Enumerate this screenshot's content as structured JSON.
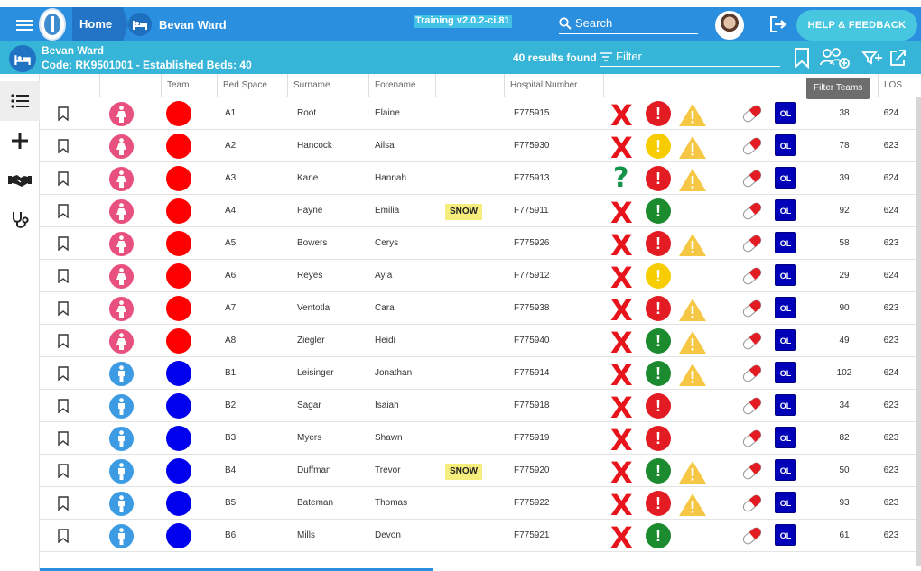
{
  "topbar": {
    "home_label": "Home",
    "ward_crumb": "Bevan Ward",
    "version": "Training v2.0.2-ci.81",
    "search_placeholder": "Search",
    "help_label": "HELP & FEEDBACK"
  },
  "ward": {
    "name": "Bevan Ward",
    "code_line": "Code: RK9501001 - Established Beds: 40",
    "results": "40 results found",
    "filter_placeholder": "Filter"
  },
  "tooltip": "Filter Teams",
  "headers": [
    "Team",
    "Bed Space",
    "Surname",
    "Forename",
    "Hospital Number",
    "LOS"
  ],
  "colors": {
    "female": "#e8507f",
    "male": "#3d9be3",
    "team_red": "#ff0000",
    "team_blue": "#0000ee"
  },
  "rows": [
    {
      "gender": "female",
      "team": "red",
      "bed": "A1",
      "surname": "Root",
      "forename": "Elaine",
      "snow": "",
      "hosp": "F775915",
      "mark": "X",
      "alert": "red",
      "warn": true,
      "n1": "38",
      "n2": "624"
    },
    {
      "gender": "female",
      "team": "red",
      "bed": "A2",
      "surname": "Hancock",
      "forename": "Ailsa",
      "snow": "",
      "hosp": "F775930",
      "mark": "X",
      "alert": "yellow",
      "warn": true,
      "n1": "78",
      "n2": "623"
    },
    {
      "gender": "female",
      "team": "red",
      "bed": "A3",
      "surname": "Kane",
      "forename": "Hannah",
      "snow": "",
      "hosp": "F775913",
      "mark": "?",
      "alert": "red",
      "warn": true,
      "n1": "39",
      "n2": "624"
    },
    {
      "gender": "female",
      "team": "red",
      "bed": "A4",
      "surname": "Payne",
      "forename": "Emilia",
      "snow": "SNOW",
      "hosp": "F775911",
      "mark": "X",
      "alert": "green",
      "warn": false,
      "n1": "92",
      "n2": "624"
    },
    {
      "gender": "female",
      "team": "red",
      "bed": "A5",
      "surname": "Bowers",
      "forename": "Cerys",
      "snow": "",
      "hosp": "F775926",
      "mark": "X",
      "alert": "red",
      "warn": true,
      "n1": "58",
      "n2": "623"
    },
    {
      "gender": "female",
      "team": "red",
      "bed": "A6",
      "surname": "Reyes",
      "forename": "Ayla",
      "snow": "",
      "hosp": "F775912",
      "mark": "X",
      "alert": "yellow",
      "warn": false,
      "n1": "29",
      "n2": "624"
    },
    {
      "gender": "female",
      "team": "red",
      "bed": "A7",
      "surname": "Ventotla",
      "forename": "Cara",
      "snow": "",
      "hosp": "F775938",
      "mark": "X",
      "alert": "red",
      "warn": true,
      "n1": "90",
      "n2": "623"
    },
    {
      "gender": "female",
      "team": "red",
      "bed": "A8",
      "surname": "Ziegler",
      "forename": "Heidi",
      "snow": "",
      "hosp": "F775940",
      "mark": "X",
      "alert": "green",
      "warn": true,
      "n1": "49",
      "n2": "623"
    },
    {
      "gender": "male",
      "team": "blue",
      "bed": "B1",
      "surname": "Leisinger",
      "forename": "Jonathan",
      "snow": "",
      "hosp": "F775914",
      "mark": "X",
      "alert": "green",
      "warn": true,
      "n1": "102",
      "n2": "624"
    },
    {
      "gender": "male",
      "team": "blue",
      "bed": "B2",
      "surname": "Sagar",
      "forename": "Isaiah",
      "snow": "",
      "hosp": "F775918",
      "mark": "X",
      "alert": "red",
      "warn": false,
      "n1": "34",
      "n2": "623"
    },
    {
      "gender": "male",
      "team": "blue",
      "bed": "B3",
      "surname": "Myers",
      "forename": "Shawn",
      "snow": "",
      "hosp": "F775919",
      "mark": "X",
      "alert": "red",
      "warn": false,
      "n1": "82",
      "n2": "623"
    },
    {
      "gender": "male",
      "team": "blue",
      "bed": "B4",
      "surname": "Duffman",
      "forename": "Trevor",
      "snow": "SNOW",
      "hosp": "F775920",
      "mark": "X",
      "alert": "green",
      "warn": true,
      "n1": "50",
      "n2": "623"
    },
    {
      "gender": "male",
      "team": "blue",
      "bed": "B5",
      "surname": "Bateman",
      "forename": "Thomas",
      "snow": "",
      "hosp": "F775922",
      "mark": "X",
      "alert": "red",
      "warn": true,
      "n1": "93",
      "n2": "623"
    },
    {
      "gender": "male",
      "team": "blue",
      "bed": "B6",
      "surname": "Mills",
      "forename": "Devon",
      "snow": "",
      "hosp": "F775921",
      "mark": "X",
      "alert": "green",
      "warn": false,
      "n1": "61",
      "n2": "623"
    }
  ],
  "ol_label": "OL"
}
